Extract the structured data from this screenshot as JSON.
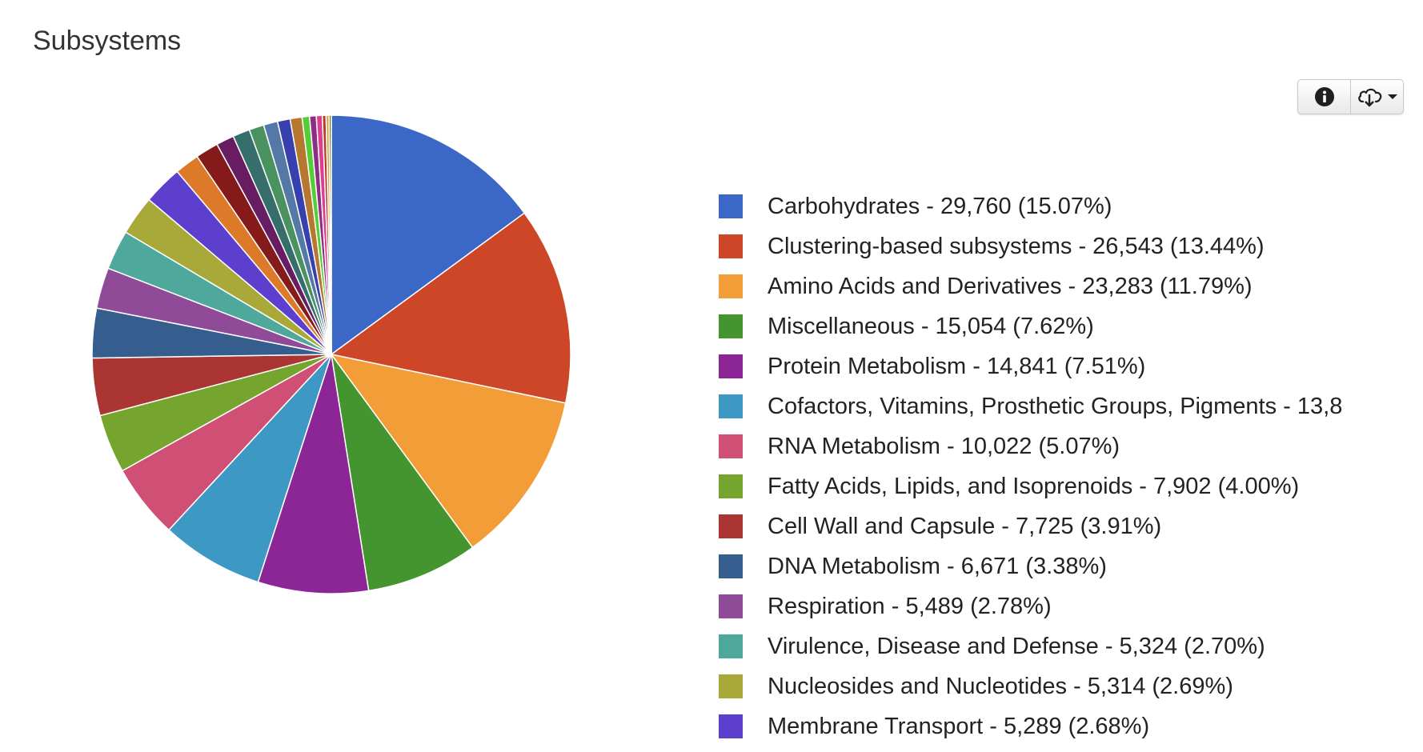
{
  "header": {
    "title": "Subsystems"
  },
  "toolbar": {
    "info_icon": "info-circle-icon",
    "download_icon": "cloud-download-icon",
    "caret_icon": "caret-down-icon"
  },
  "chart_data": {
    "type": "pie",
    "title": "",
    "legend_position": "right",
    "slices": [
      {
        "label": "Carbohydrates - 29,760 (15.07%)",
        "value": 29760,
        "color": "#3b67c6"
      },
      {
        "label": "Clustering-based subsystems - 26,543 (13.44%)",
        "value": 26543,
        "color": "#cc4627"
      },
      {
        "label": "Amino Acids and Derivatives - 23,283 (11.79%)",
        "value": 23283,
        "color": "#f29d38"
      },
      {
        "label": "Miscellaneous - 15,054 (7.62%)",
        "value": 15054,
        "color": "#449430"
      },
      {
        "label": "Protein Metabolism - 14,841 (7.51%)",
        "value": 14841,
        "color": "#8c2595"
      },
      {
        "label": "Cofactors, Vitamins, Prosthetic Groups, Pigments - 13,8",
        "value": 13800,
        "color": "#3e98c4"
      },
      {
        "label": "RNA Metabolism - 10,022 (5.07%)",
        "value": 10022,
        "color": "#d04f74"
      },
      {
        "label": "Fatty Acids, Lipids, and Isoprenoids - 7,902 (4.00%)",
        "value": 7902,
        "color": "#75a52e"
      },
      {
        "label": "Cell Wall and Capsule - 7,725 (3.91%)",
        "value": 7725,
        "color": "#aa3532"
      },
      {
        "label": "DNA Metabolism - 6,671 (3.38%)",
        "value": 6671,
        "color": "#355e8f"
      },
      {
        "label": "Respiration - 5,489 (2.78%)",
        "value": 5489,
        "color": "#8f4b98"
      },
      {
        "label": "Virulence, Disease and Defense - 5,324 (2.70%)",
        "value": 5324,
        "color": "#4ea99c"
      },
      {
        "label": "Nucleosides and Nucleotides - 5,314 (2.69%)",
        "value": 5314,
        "color": "#a9a93a"
      },
      {
        "label": "Membrane Transport - 5,289 (2.68%)",
        "value": 5289,
        "color": "#5c3fcc"
      },
      {
        "label": "",
        "value": 3300,
        "color": "#dc7a2a"
      },
      {
        "label": "",
        "value": 3100,
        "color": "#841a1a"
      },
      {
        "label": "",
        "value": 2400,
        "color": "#681d62"
      },
      {
        "label": "",
        "value": 2300,
        "color": "#356e6a"
      },
      {
        "label": "",
        "value": 2000,
        "color": "#4a9260"
      },
      {
        "label": "",
        "value": 1900,
        "color": "#5579a6"
      },
      {
        "label": "",
        "value": 1700,
        "color": "#3740ad"
      },
      {
        "label": "",
        "value": 1600,
        "color": "#b6772e"
      },
      {
        "label": "",
        "value": 1000,
        "color": "#55cd37"
      },
      {
        "label": "",
        "value": 900,
        "color": "#8f2c85"
      },
      {
        "label": "",
        "value": 800,
        "color": "#dc3f8e"
      },
      {
        "label": "",
        "value": 500,
        "color": "#bb3a2e"
      },
      {
        "label": "",
        "value": 400,
        "color": "#d6a43c"
      },
      {
        "label": "",
        "value": 300,
        "color": "#6e7e22"
      }
    ]
  }
}
